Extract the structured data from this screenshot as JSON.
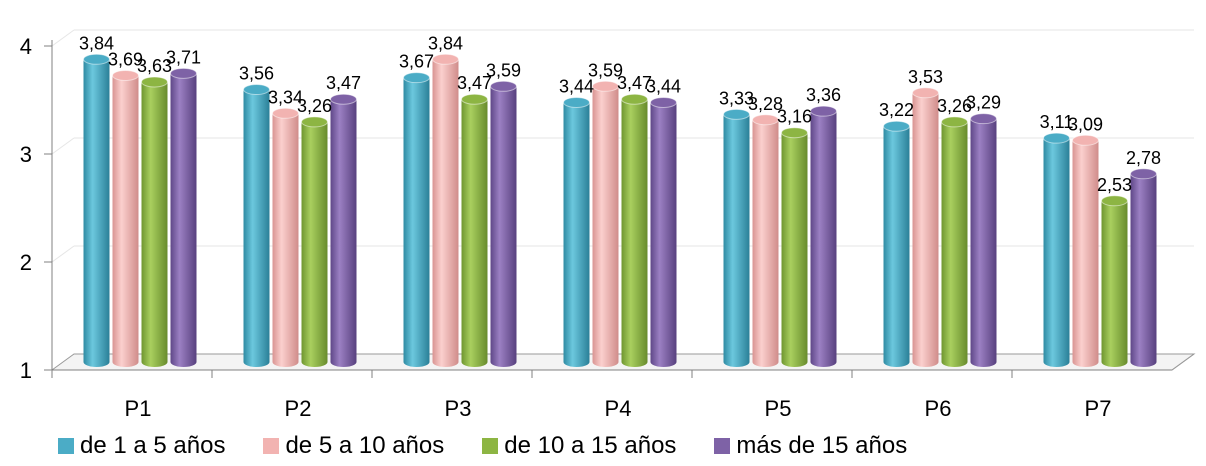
{
  "chart_data": {
    "type": "bar",
    "categories": [
      "P1",
      "P2",
      "P3",
      "P4",
      "P5",
      "P6",
      "P7"
    ],
    "series": [
      {
        "name": "de 1 a 5 años",
        "color": "#4bacc6",
        "values": [
          3.84,
          3.56,
          3.67,
          3.44,
          3.33,
          3.22,
          3.11
        ],
        "labels": [
          "3,84",
          "3,56",
          "3,67",
          "3,44",
          "3,33",
          "3,22",
          "3,11"
        ]
      },
      {
        "name": "de 5 a 10 años",
        "color": "#f2b3b1",
        "values": [
          3.69,
          3.34,
          3.84,
          3.59,
          3.28,
          3.53,
          3.09
        ],
        "labels": [
          "3,69",
          "3,34",
          "3,84",
          "3,59",
          "3,28",
          "3,53",
          "3,09"
        ]
      },
      {
        "name": "de 10 a 15 años",
        "color": "#8db543",
        "values": [
          3.63,
          3.26,
          3.47,
          3.47,
          3.16,
          3.26,
          2.53
        ],
        "labels": [
          "3,63",
          "3,26",
          "3,47",
          "3,47",
          "3,16",
          "3,26",
          "2,53"
        ]
      },
      {
        "name": "más de 15 años",
        "color": "#7e62a6",
        "values": [
          3.71,
          3.47,
          3.59,
          3.44,
          3.36,
          3.29,
          2.78
        ],
        "labels": [
          "3,71",
          "3,47",
          "3,59",
          "3,44",
          "3,36",
          "3,29",
          "2,78"
        ]
      }
    ],
    "y_ticks": [
      "1",
      "2",
      "3",
      "4"
    ],
    "ylim": [
      1,
      4
    ],
    "grid": true,
    "legend_position": "bottom",
    "three_d": true
  }
}
